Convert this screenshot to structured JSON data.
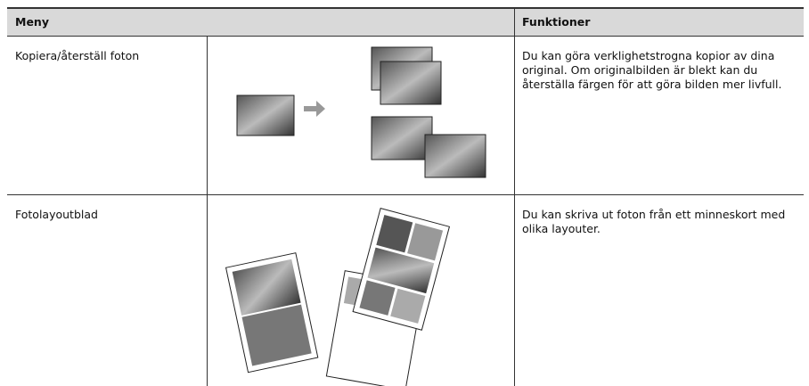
{
  "table": {
    "header": [
      "Meny",
      "Funktioner"
    ],
    "rows": [
      {
        "menu": "Kopiera/återställ foton",
        "description": "Du kan göra verklighetstrogna kopior av dina original. Om originalbilden är blekt kan du återställa färgen för att göra bilden mer livfull."
      },
      {
        "menu": "Fotolayoutblad",
        "description": "Du kan skriva ut foton från ett minneskort med olika layouter."
      }
    ]
  }
}
